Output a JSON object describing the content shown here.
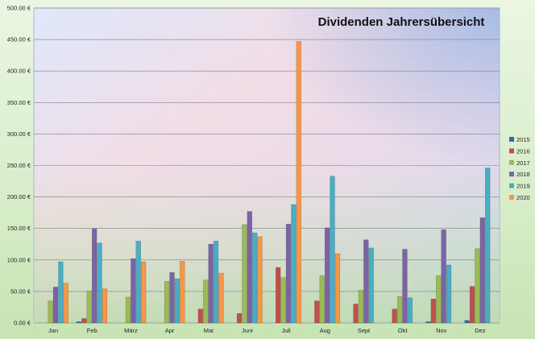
{
  "chart_data": {
    "type": "bar",
    "title": "Dividenden Jahrersübersicht",
    "xlabel": "",
    "ylabel": "",
    "ylim": [
      0,
      500
    ],
    "ytick_labels": [
      "0.00 €",
      "50.00 €",
      "100.00 €",
      "150.00 €",
      "200.00 €",
      "250.00 €",
      "300.00 €",
      "350.00 €",
      "400.00 €",
      "450.00 €",
      "500.00 €"
    ],
    "grid": true,
    "legend_position": "right",
    "categories": [
      "Jan",
      "Feb",
      "März",
      "Apr",
      "Mai",
      "Juni",
      "Juli",
      "Aug",
      "Sept",
      "Okt",
      "Nov",
      "Dez"
    ],
    "series": [
      {
        "name": "2015",
        "color": "#2f6f9f",
        "values": [
          0,
          2,
          0,
          0,
          0,
          0,
          0,
          0,
          0,
          0,
          2,
          4
        ]
      },
      {
        "name": "2016",
        "color": "#c0504d",
        "values": [
          0,
          7,
          0,
          0,
          22,
          15,
          88,
          35,
          30,
          22,
          38,
          58
        ]
      },
      {
        "name": "2017",
        "color": "#9bbb59",
        "values": [
          35,
          51,
          41,
          66,
          68,
          156,
          72,
          75,
          52,
          42,
          75,
          118
        ]
      },
      {
        "name": "2018",
        "color": "#7c64a4",
        "values": [
          57,
          150,
          102,
          80,
          125,
          177,
          157,
          151,
          132,
          117,
          148,
          167
        ]
      },
      {
        "name": "2019",
        "color": "#4bacc6",
        "values": [
          97,
          127,
          130,
          70,
          130,
          143,
          188,
          233,
          119,
          40,
          92,
          246
        ]
      },
      {
        "name": "2020",
        "color": "#f79646",
        "values": [
          63,
          54,
          97,
          98,
          79,
          137,
          447,
          110,
          0,
          0,
          0,
          0
        ]
      }
    ]
  }
}
